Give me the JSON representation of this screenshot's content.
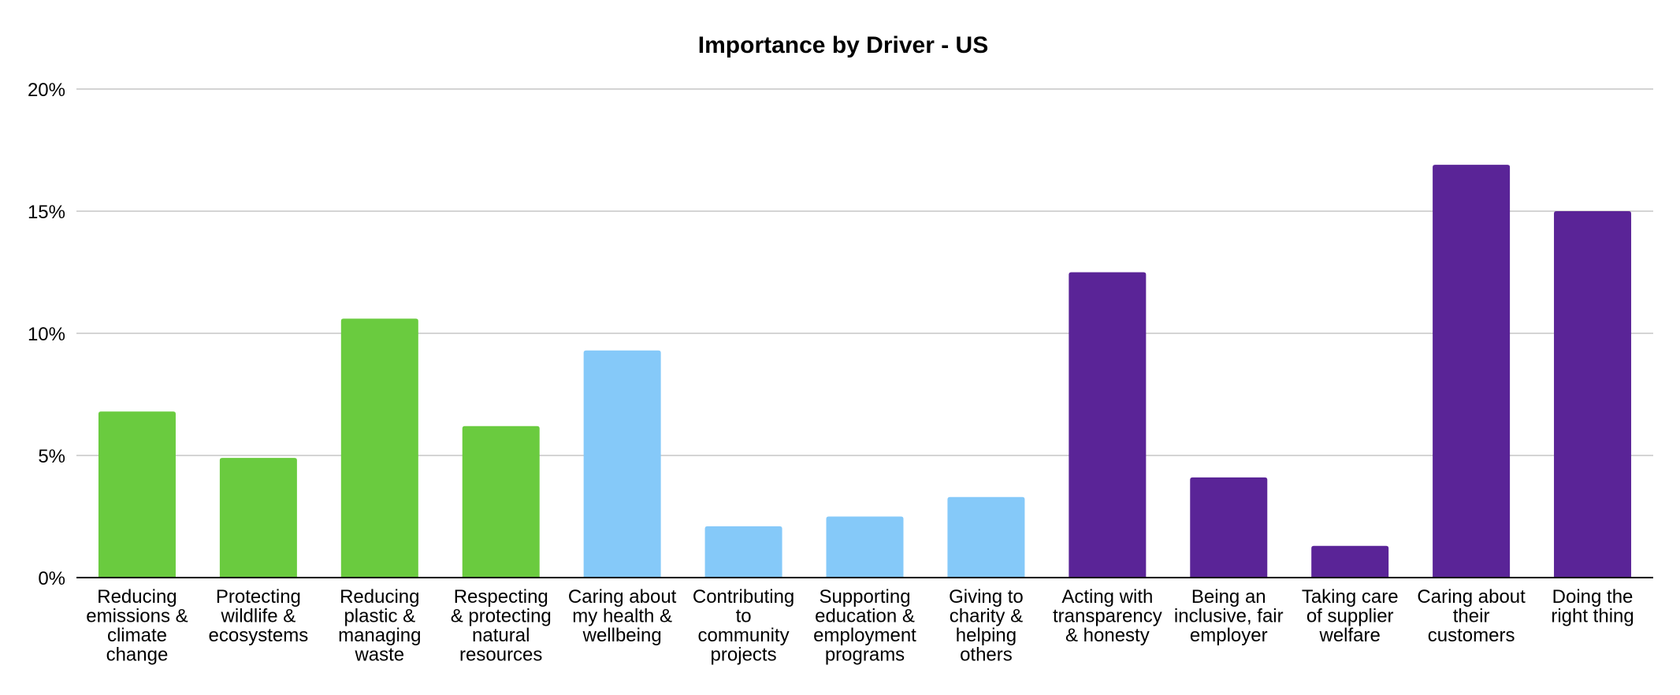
{
  "chart_data": {
    "type": "bar",
    "title": "Importance by Driver - US",
    "xlabel": "",
    "ylabel": "",
    "ylim": [
      0,
      20
    ],
    "y_ticks": [
      0,
      5,
      10,
      15,
      20
    ],
    "y_tick_labels": [
      "0%",
      "5%",
      "10%",
      "15%",
      "20%"
    ],
    "grid": true,
    "legend": "none",
    "categories": [
      [
        "Reducing",
        "emissions &",
        "climate",
        "change"
      ],
      [
        "Protecting",
        "wildlife &",
        "ecosystems"
      ],
      [
        "Reducing",
        "plastic &",
        "managing",
        "waste"
      ],
      [
        "Respecting",
        "& protecting",
        "natural",
        "resources"
      ],
      [
        "Caring about",
        "my health &",
        "wellbeing"
      ],
      [
        "Contributing",
        "to",
        "community",
        "projects"
      ],
      [
        "Supporting",
        "education &",
        "employment",
        "programs"
      ],
      [
        "Giving to",
        "charity &",
        "helping",
        "others"
      ],
      [
        "Acting with",
        "transparency",
        "& honesty"
      ],
      [
        "Being an",
        "inclusive, fair",
        "employer"
      ],
      [
        "Taking care",
        "of supplier",
        "welfare"
      ],
      [
        "Caring about",
        "their",
        "customers"
      ],
      [
        "Doing the",
        "right thing"
      ]
    ],
    "values": [
      6.8,
      4.9,
      10.6,
      6.2,
      9.3,
      2.1,
      2.5,
      3.3,
      12.5,
      4.1,
      1.3,
      16.9,
      15.0
    ],
    "bar_colors": [
      "#6acb3f",
      "#6acb3f",
      "#6acb3f",
      "#6acb3f",
      "#85c9f9",
      "#85c9f9",
      "#85c9f9",
      "#85c9f9",
      "#5a2497",
      "#5a2497",
      "#5a2497",
      "#5a2497",
      "#5a2497"
    ]
  }
}
